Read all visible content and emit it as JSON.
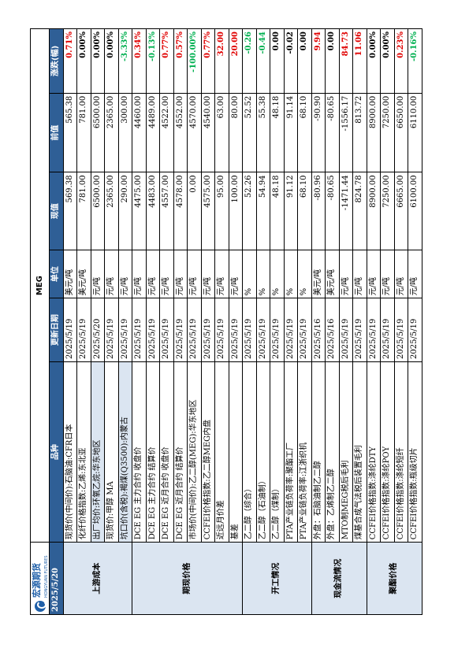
{
  "logo": {
    "brand": "宏源期货",
    "sub": "HONGYUAN FUTURES"
  },
  "sheet_title": "MEG",
  "header": {
    "date": "2025/5/20",
    "columns": [
      "品种",
      "更新日期",
      "单位",
      "现值",
      "前值",
      "涨跌(幅)"
    ]
  },
  "sections": [
    {
      "title": "上游成本",
      "rows": [
        {
          "name": "现货价(中间价):石脑油:CFR日本",
          "date": "2025/5/19",
          "unit": "美元/吨",
          "current": "569.38",
          "previous": "565.38",
          "change": "0.71%",
          "change_color": "red",
          "highlight": false
        },
        {
          "name": "化纤价格指数:乙烯:东北亚",
          "date": "2025/5/19",
          "unit": "美元/吨",
          "current": "781.00",
          "previous": "781.00",
          "change": "0.00%",
          "change_color": "black",
          "highlight": false
        },
        {
          "name": "出厂均价:环氧乙烷:华东地区",
          "date": "2025/5/20",
          "unit": "元/吨",
          "current": "6500.00",
          "previous": "6500.00",
          "change": "0.00%",
          "change_color": "black",
          "highlight": true
        },
        {
          "name": "现货价:甲醇 MA",
          "date": "2025/5/19",
          "unit": "元/吨",
          "current": "2365.00",
          "previous": "2365.00",
          "change": "0.00%",
          "change_color": "black",
          "highlight": false
        },
        {
          "name": "坑口价(含税):褐煤(Q3500):内蒙古",
          "date": "2025/5/19",
          "unit": "元/吨",
          "current": "290.00",
          "previous": "300.00",
          "change": "-3.33%",
          "change_color": "green",
          "highlight": true
        }
      ]
    },
    {
      "title": "期现价格",
      "rows": [
        {
          "name": "DCE EG 主力合约 收盘价",
          "date": "2025/5/19",
          "unit": "元/吨",
          "current": "4475.00",
          "previous": "4460.00",
          "change": "0.34%",
          "change_color": "red",
          "highlight": false
        },
        {
          "name": "DCE EG 主力合约 结算价",
          "date": "2025/5/19",
          "unit": "元/吨",
          "current": "4483.00",
          "previous": "4489.00",
          "change": "-0.13%",
          "change_color": "green",
          "highlight": false
        },
        {
          "name": "DCE EG 近月合约 收盘价",
          "date": "2025/5/19",
          "unit": "元/吨",
          "current": "4557.00",
          "previous": "4522.00",
          "change": "0.77%",
          "change_color": "red",
          "highlight": false
        },
        {
          "name": "DCE EG 近月合约 结算价",
          "date": "2025/5/19",
          "unit": "元/吨",
          "current": "4578.00",
          "previous": "4552.00",
          "change": "0.57%",
          "change_color": "red",
          "highlight": false
        },
        {
          "name": "市场价(中间价):乙二醇(MEG):华东地区",
          "date": "2025/5/19",
          "unit": "元/吨",
          "current": "0.00",
          "previous": "4570.00",
          "change": "-100.00%",
          "change_color": "green",
          "highlight": false
        },
        {
          "name": "CCFEI价格指数:乙二醇MEG内盘",
          "date": "2025/5/19",
          "unit": "元/吨",
          "current": "4575.00",
          "previous": "4540.00",
          "change": "0.77%",
          "change_color": "red",
          "highlight": false
        },
        {
          "name": "近远月价差",
          "date": "2025/5/19",
          "unit": "元/吨",
          "current": "95.00",
          "previous": "63.00",
          "change": "32.00",
          "change_color": "red",
          "highlight": false
        },
        {
          "name": "基差",
          "date": "2025/5/19",
          "unit": "元/吨",
          "current": "100.00",
          "previous": "80.00",
          "change": "20.00",
          "change_color": "red",
          "highlight": false
        }
      ]
    },
    {
      "title": "开工情况",
      "rows": [
        {
          "name": "乙二醇（综合）",
          "date": "2025/5/19",
          "unit": "%",
          "current": "52.26",
          "previous": "52.52",
          "change": "-0.26",
          "change_color": "green",
          "highlight": false
        },
        {
          "name": "乙二醇（石油制）",
          "date": "2025/5/19",
          "unit": "%",
          "current": "54.94",
          "previous": "55.38",
          "change": "-0.44",
          "change_color": "green",
          "highlight": false
        },
        {
          "name": "乙二醇（煤制）",
          "date": "2025/5/19",
          "unit": "%",
          "current": "48.18",
          "previous": "48.18",
          "change": "0.00",
          "change_color": "black",
          "highlight": false
        },
        {
          "name": "PTA产业链负荷率:聚酯工厂",
          "date": "2025/5/19",
          "unit": "%",
          "current": "91.12",
          "previous": "91.14",
          "change": "-0.02",
          "change_color": "black",
          "highlight": false
        },
        {
          "name": "PTA产业链负荷率:江浙织机",
          "date": "2025/5/19",
          "unit": "%",
          "current": "68.10",
          "previous": "68.10",
          "change": "0.00",
          "change_color": "black",
          "highlight": false
        }
      ]
    },
    {
      "title": "现金流情况",
      "rows": [
        {
          "name": "外盘：石脑油制乙二醇",
          "date": "2025/5/16",
          "unit": "美元/吨",
          "current": "-80.96",
          "previous": "-90.90",
          "change": "9.94",
          "change_color": "red",
          "highlight": false
        },
        {
          "name": "外盘：乙烯制乙二醇",
          "date": "2025/5/16",
          "unit": "美元/吨",
          "current": "-80.65",
          "previous": "-80.65",
          "change": "0.00",
          "change_color": "black",
          "highlight": false
        },
        {
          "name": "MTO制MEG税后毛利",
          "date": "2025/5/19",
          "unit": "元/吨",
          "current": "-1471.44",
          "previous": "-1556.17",
          "change": "84.73",
          "change_color": "red",
          "highlight": false
        },
        {
          "name": "煤基合成气法税后装置毛利",
          "date": "2025/5/19",
          "unit": "元/吨",
          "current": "824.78",
          "previous": "813.72",
          "change": "11.06",
          "change_color": "red",
          "highlight": false
        }
      ]
    },
    {
      "title": "聚酯价格",
      "rows": [
        {
          "name": "CCFEI价格指数:涤纶DTY",
          "date": "2025/5/19",
          "unit": "元/吨",
          "current": "8900.00",
          "previous": "8900.00",
          "change": "0.00%",
          "change_color": "black",
          "highlight": false
        },
        {
          "name": "CCFEI价格指数:涤纶POY",
          "date": "2025/5/19",
          "unit": "元/吨",
          "current": "7250.00",
          "previous": "7250.00",
          "change": "0.00%",
          "change_color": "black",
          "highlight": false
        },
        {
          "name": "CCFEI价格指数:涤纶短纤",
          "date": "2025/5/19",
          "unit": "元/吨",
          "current": "6665.00",
          "previous": "6650.00",
          "change": "0.23%",
          "change_color": "red",
          "highlight": false
        },
        {
          "name": "CCFEI价格指数:瓶级切片",
          "date": "2025/5/19",
          "unit": "元/吨",
          "current": "6100.00",
          "previous": "6110.00",
          "change": "-0.16%",
          "change_color": "green",
          "highlight": false
        }
      ]
    }
  ]
}
